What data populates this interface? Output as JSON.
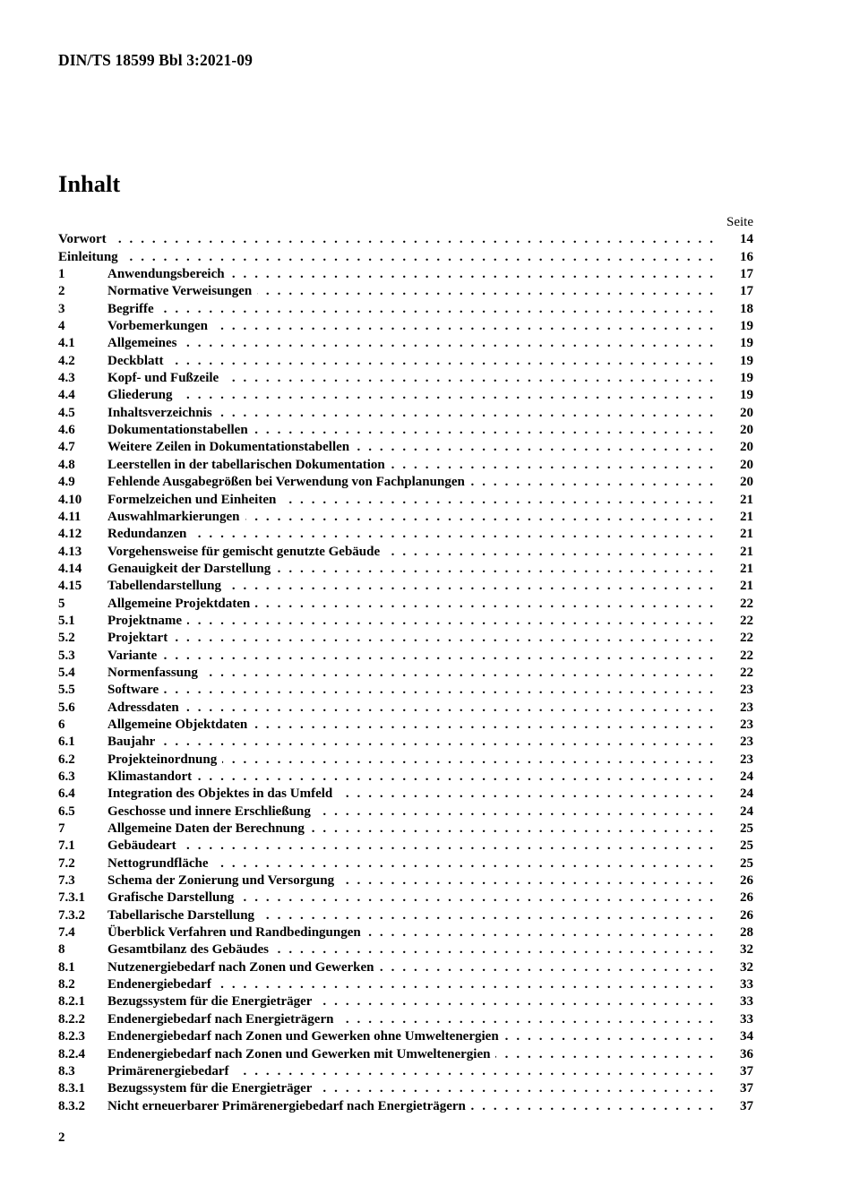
{
  "document": {
    "header": "DIN/TS 18599 Bbl 3:2021-09",
    "title": "Inhalt",
    "page_column_label": "Seite",
    "footer_page_number": "2"
  },
  "colors": {
    "text": "#000000",
    "background": "#ffffff"
  },
  "toc_entries": [
    {
      "num": "",
      "title": "Vorwort",
      "page": "14"
    },
    {
      "num": "",
      "title": "Einleitung",
      "page": "16"
    },
    {
      "num": "1",
      "title": "Anwendungsbereich",
      "page": "17"
    },
    {
      "num": "2",
      "title": "Normative Verweisungen",
      "page": "17"
    },
    {
      "num": "3",
      "title": "Begriffe",
      "page": "18"
    },
    {
      "num": "4",
      "title": "Vorbemerkungen",
      "page": "19"
    },
    {
      "num": "4.1",
      "title": "Allgemeines",
      "page": "19"
    },
    {
      "num": "4.2",
      "title": "Deckblatt",
      "page": "19"
    },
    {
      "num": "4.3",
      "title": "Kopf- und Fußzeile",
      "page": "19"
    },
    {
      "num": "4.4",
      "title": "Gliederung",
      "page": "19"
    },
    {
      "num": "4.5",
      "title": "Inhaltsverzeichnis",
      "page": "20"
    },
    {
      "num": "4.6",
      "title": "Dokumentationstabellen",
      "page": "20"
    },
    {
      "num": "4.7",
      "title": "Weitere Zeilen in Dokumentationstabellen",
      "page": "20"
    },
    {
      "num": "4.8",
      "title": "Leerstellen in der tabellarischen Dokumentation",
      "page": "20"
    },
    {
      "num": "4.9",
      "title": "Fehlende Ausgabegrößen bei Verwendung von Fachplanungen",
      "page": "20"
    },
    {
      "num": "4.10",
      "title": "Formelzeichen und Einheiten",
      "page": "21"
    },
    {
      "num": "4.11",
      "title": "Auswahlmarkierungen",
      "page": "21"
    },
    {
      "num": "4.12",
      "title": "Redundanzen",
      "page": "21"
    },
    {
      "num": "4.13",
      "title": "Vorgehensweise für gemischt genutzte Gebäude",
      "page": "21"
    },
    {
      "num": "4.14",
      "title": "Genauigkeit der Darstellung",
      "page": "21"
    },
    {
      "num": "4.15",
      "title": "Tabellendarstellung",
      "page": "21"
    },
    {
      "num": "5",
      "title": "Allgemeine Projektdaten",
      "page": "22"
    },
    {
      "num": "5.1",
      "title": "Projektname",
      "page": "22"
    },
    {
      "num": "5.2",
      "title": "Projektart",
      "page": "22"
    },
    {
      "num": "5.3",
      "title": "Variante",
      "page": "22"
    },
    {
      "num": "5.4",
      "title": "Normenfassung",
      "page": "22"
    },
    {
      "num": "5.5",
      "title": "Software",
      "page": "23"
    },
    {
      "num": "5.6",
      "title": "Adressdaten",
      "page": "23"
    },
    {
      "num": "6",
      "title": "Allgemeine Objektdaten",
      "page": "23"
    },
    {
      "num": "6.1",
      "title": "Baujahr",
      "page": "23"
    },
    {
      "num": "6.2",
      "title": "Projekteinordnung",
      "page": "23"
    },
    {
      "num": "6.3",
      "title": "Klimastandort",
      "page": "24"
    },
    {
      "num": "6.4",
      "title": "Integration des Objektes in das Umfeld",
      "page": "24"
    },
    {
      "num": "6.5",
      "title": "Geschosse und innere Erschließung",
      "page": "24"
    },
    {
      "num": "7",
      "title": "Allgemeine Daten der Berechnung",
      "page": "25"
    },
    {
      "num": "7.1",
      "title": "Gebäudeart",
      "page": "25"
    },
    {
      "num": "7.2",
      "title": "Nettogrundfläche",
      "page": "25"
    },
    {
      "num": "7.3",
      "title": "Schema der Zonierung und Versorgung",
      "page": "26"
    },
    {
      "num": "7.3.1",
      "title": "Grafische Darstellung",
      "page": "26"
    },
    {
      "num": "7.3.2",
      "title": "Tabellarische Darstellung",
      "page": "26"
    },
    {
      "num": "7.4",
      "title": "Überblick Verfahren und Randbedingungen",
      "page": "28"
    },
    {
      "num": "8",
      "title": "Gesamtbilanz des Gebäudes",
      "page": "32"
    },
    {
      "num": "8.1",
      "title": "Nutzenergiebedarf nach Zonen und Gewerken",
      "page": "32"
    },
    {
      "num": "8.2",
      "title": "Endenergiebedarf",
      "page": "33"
    },
    {
      "num": "8.2.1",
      "title": "Bezugssystem für die Energieträger",
      "page": "33"
    },
    {
      "num": "8.2.2",
      "title": "Endenergiebedarf nach Energieträgern",
      "page": "33"
    },
    {
      "num": "8.2.3",
      "title": "Endenergiebedarf nach Zonen und Gewerken ohne Umweltenergien",
      "page": "34"
    },
    {
      "num": "8.2.4",
      "title": "Endenergiebedarf nach Zonen und Gewerken mit Umweltenergien",
      "page": "36"
    },
    {
      "num": "8.3",
      "title": "Primärenergiebedarf",
      "page": "37"
    },
    {
      "num": "8.3.1",
      "title": "Bezugssystem für die Energieträger",
      "page": "37"
    },
    {
      "num": "8.3.2",
      "title": "Nicht erneuerbarer Primärenergiebedarf nach Energieträgern",
      "page": "37"
    }
  ]
}
